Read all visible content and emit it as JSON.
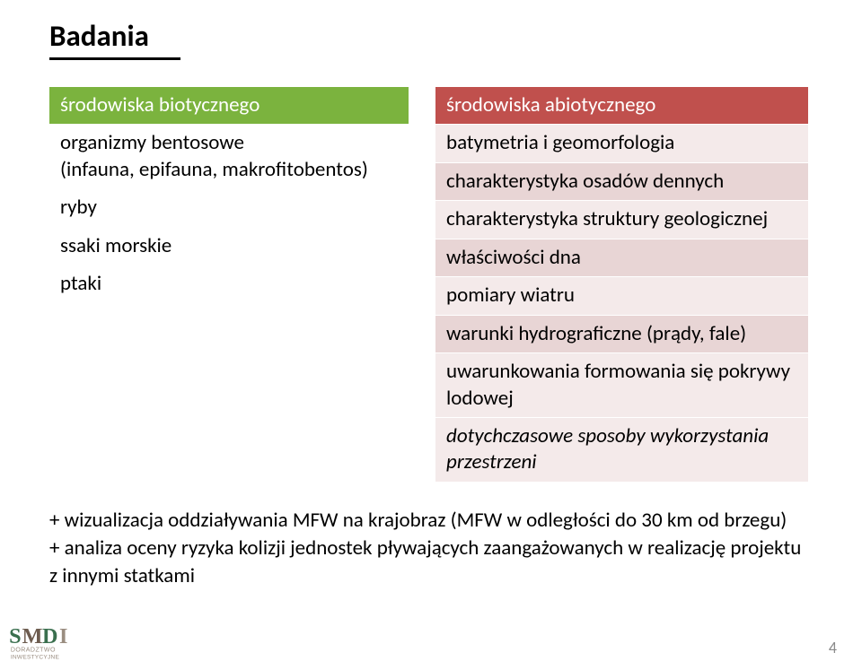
{
  "page": {
    "title": "Badania",
    "number": "4"
  },
  "left": {
    "header": "środowiska biotycznego",
    "rows": [
      "organizmy bentosowe\n(infauna, epifauna, makrofitobentos)",
      "ryby",
      "ssaki morskie",
      "ptaki"
    ]
  },
  "right": {
    "header": "środowiska abiotycznego",
    "rows": [
      "batymetria i geomorfologia",
      "charakterystyka osadów dennych",
      "charakterystyka struktury geologicznej",
      "właściwości dna",
      "pomiary wiatru",
      "warunki hydrograficzne (prądy, fale)",
      "uwarunkowania formowania się pokrywy lodowej",
      "dotychczasowe sposoby wykorzystania przestrzeni"
    ]
  },
  "after": {
    "line1": "+ wizualizacja oddziaływania MFW na krajobraz (MFW w odległości do 30 km od brzegu)",
    "line2": "+ analiza oceny ryzyka kolizji jednostek pływających zaangażowanych w realizację projektu z innymi statkami"
  },
  "logo": {
    "letters": "SMDI",
    "sub1": "DORADZTWO",
    "sub2": "INWESTYCYJNE",
    "colors": {
      "s": "#3a6f4e",
      "m": "#6d5c4f",
      "d": "#3a6f4e",
      "i": "#9a8d80",
      "sub": "#9a8d80"
    }
  },
  "colors": {
    "green_header": "#7bb33e",
    "red_header": "#c0504d",
    "row_light": "#f4eaea",
    "row_dark": "#e8d5d5",
    "rule": "#000000"
  }
}
